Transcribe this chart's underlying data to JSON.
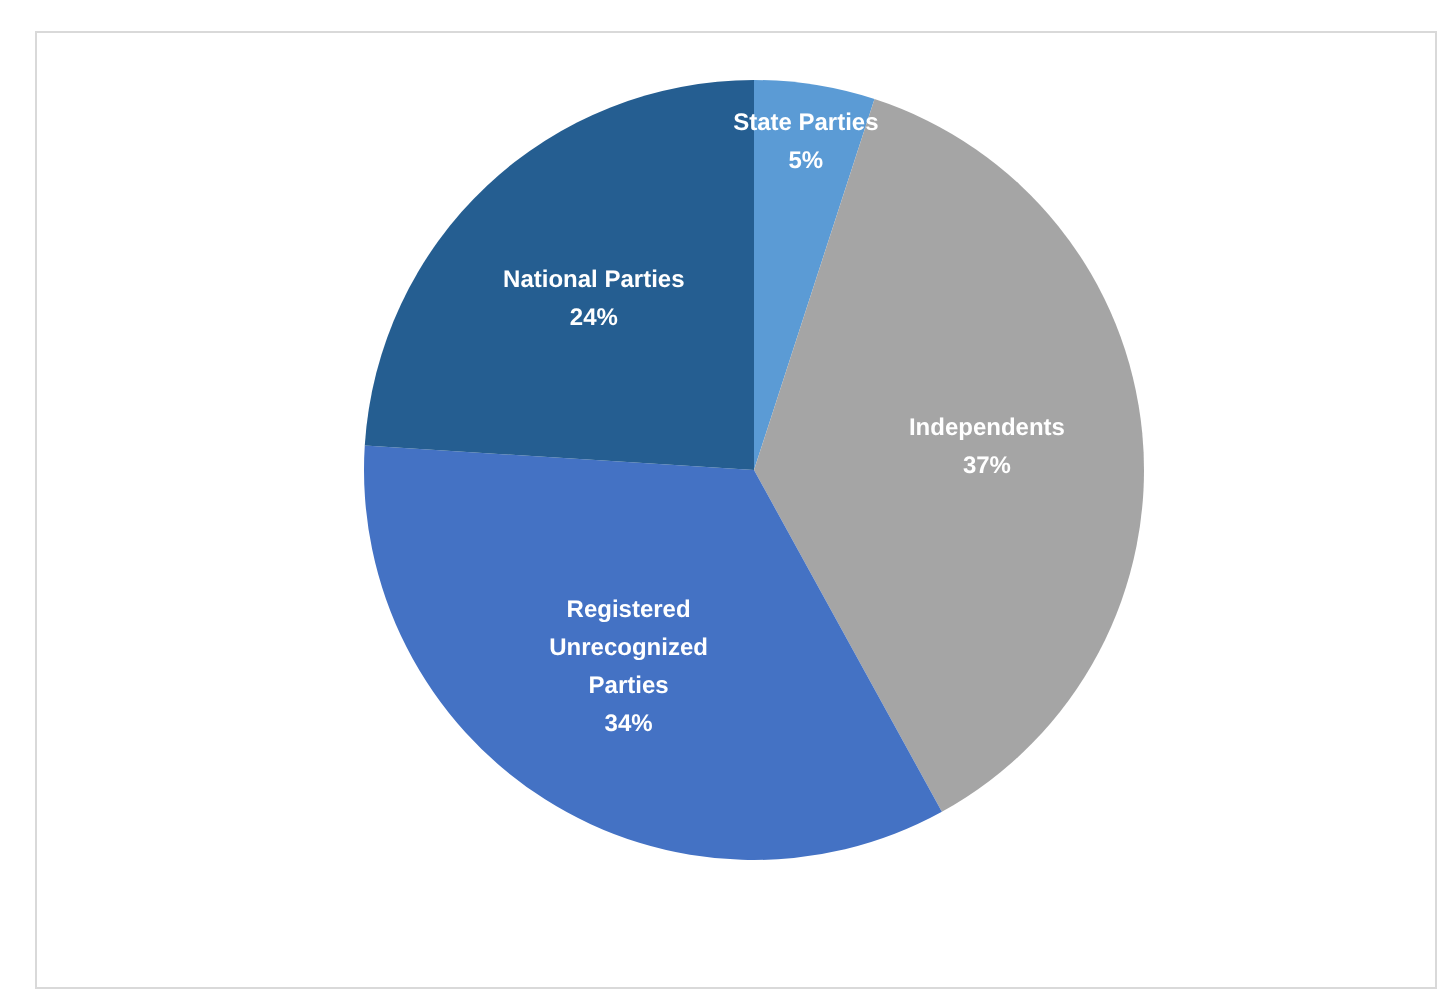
{
  "chart_data": {
    "type": "pie",
    "categories": [
      "State Parties",
      "Independents",
      "Registered Unrecognized Parties",
      "National Parties"
    ],
    "values": [
      5,
      37,
      34,
      24
    ],
    "colors": [
      "#5b9bd5",
      "#a5a5a5",
      "#4472c4",
      "#255e91"
    ],
    "value_labels": [
      "5%",
      "37%",
      "34%",
      "24%"
    ]
  }
}
